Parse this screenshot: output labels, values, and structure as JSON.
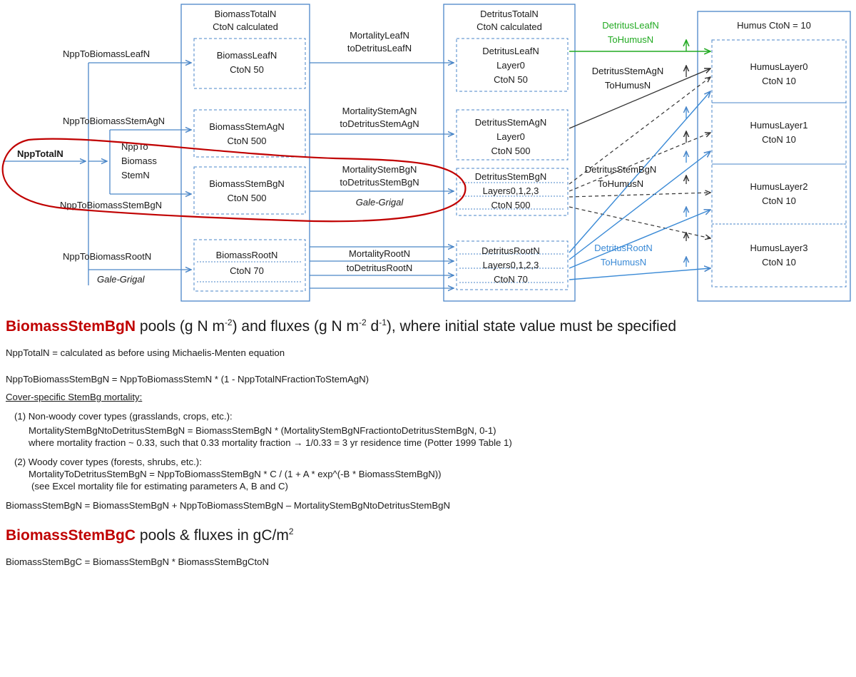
{
  "colors": {
    "blue": "#4a86c8",
    "darkblue": "#3a6fb0",
    "red": "#c00000",
    "green": "#22aa22",
    "dark": "#333333"
  },
  "diagram": {
    "column_biomass": {
      "title1": "BiomassTotalN",
      "title2": "CtoN  calculated"
    },
    "column_detritus": {
      "title1": "DetritusTotalN",
      "title2": "CtoN  calculated"
    },
    "column_humus": {
      "title": "Humus CtoN = 10"
    },
    "biomass_leaf": {
      "l1": "BiomassLeafN",
      "l2": "CtoN  50"
    },
    "biomass_stemag": {
      "l1": "BiomassStemAgN",
      "l2": "CtoN  500"
    },
    "biomass_stembg": {
      "l1": "BiomassStemBgN",
      "l2": "CtoN  500"
    },
    "biomass_root": {
      "l1": "BiomassRootN",
      "l2": "CtoN  70"
    },
    "detritus_leaf": {
      "l1": "DetritusLeafN",
      "l2": "Layer0",
      "l3": "CtoN  50"
    },
    "detritus_stemag": {
      "l1": "DetritusStemAgN",
      "l2": "Layer0",
      "l3": "CtoN  500"
    },
    "detritus_stembg": {
      "l1": "DetritusStemBgN",
      "l2": "Layers0,1,2,3",
      "l3": "CtoN  500"
    },
    "detritus_root": {
      "l1": "DetritusRootN",
      "l2": "Layers0,1,2,3",
      "l3": "CtoN  70"
    },
    "humus0": {
      "l1": "HumusLayer0",
      "l2": "CtoN  10"
    },
    "humus1": {
      "l1": "HumusLayer1",
      "l2": "CtoN  10"
    },
    "humus2": {
      "l1": "HumusLayer2",
      "l2": "CtoN  10"
    },
    "humus3": {
      "l1": "HumusLayer3",
      "l2": "CtoN  10"
    },
    "npp_total": "NppTotalN",
    "npp_to_biomass_stem": {
      "l1": "NppTo",
      "l2": "Biomass",
      "l3": "StemN"
    },
    "flux_npp_leaf": "NppToBiomassLeafN",
    "flux_npp_stemag": "NppToBiomassStemAgN",
    "flux_npp_stembg": "NppToBiomassStemBgN",
    "flux_npp_root": "NppToBiomassRootN",
    "gale_grigal": "Gale-Grigal",
    "flux_mort_leaf": {
      "l1": "MortalityLeafN",
      "l2": "toDetritusLeafN"
    },
    "flux_mort_stemag": {
      "l1": "MortalityStemAgN",
      "l2": "toDetritusStemAgN"
    },
    "flux_mort_stembg": {
      "l1": "MortalityStemBgN",
      "l2": "toDetritusStemBgN"
    },
    "flux_mort_root": {
      "l1": "MortalityRootN",
      "l2": "toDetritusRootN"
    },
    "flux_det_leaf": {
      "l1": "DetritusLeafN",
      "l2": "ToHumusN"
    },
    "flux_det_stemag": {
      "l1": "DetritusStemAgN",
      "l2": "ToHumusN"
    },
    "flux_det_stembg": {
      "l1": "DetritusStemBgN",
      "l2": "ToHumusN"
    },
    "flux_det_root": {
      "l1": "DetritusRootN",
      "l2": "ToHumusN"
    }
  },
  "notes": {
    "heading1": {
      "red": "BiomassStemBgN",
      "rest1": " pools (g N m",
      "sup1": "-2",
      "rest2": ") and fluxes (g N m",
      "sup2": "-2",
      "rest3": " d",
      "sup3": "-1",
      "rest4": "), where initial state value must be specified"
    },
    "line_npp_total": "NppTotalN = calculated as before using Michaelis-Menten equation",
    "line_npp_stembg": "NppToBiomassStemBgN = NppToBiomassStemN * (1 - NppTotalNFractionToStemAgN)",
    "mortality_heading": "Cover-specific StemBg mortality:",
    "case1_title": "(1) Non-woody cover types (grasslands, crops, etc.):",
    "case1_eq": "MortalityStemBgNtoDetritusStemBgN = BiomassStemBgN * (MortalityStemBgNFractiontoDetritusStemBgN, 0-1)",
    "case1_note": "where mortality fraction ~ 0.33, such that 0.33 mortality fraction → 1/0.33 = 3 yr residence time (Potter 1999 Table 1)",
    "case2_title": "(2) Woody cover types (forests, shrubs, etc.):",
    "case2_eq": "MortalityToDetritusStemBgN = NppToBiomassStemBgN * C / (1 + A * exp^(-B * BiomassStemBgN))",
    "case2_note": "(see Excel mortality file for estimating parameters A, B and C)",
    "line_balance": "BiomassStemBgN = BiomassStemBgN + NppToBiomassStemBgN – MortalityStemBgNtoDetritusStemBgN",
    "heading2": {
      "red": "BiomassStemBgC",
      "rest1": " pools & fluxes in gC/m",
      "sup1": "2"
    },
    "line_carbon": "BiomassStemBgC = BiomassStemBgN  * BiomassStemBgCtoN"
  }
}
